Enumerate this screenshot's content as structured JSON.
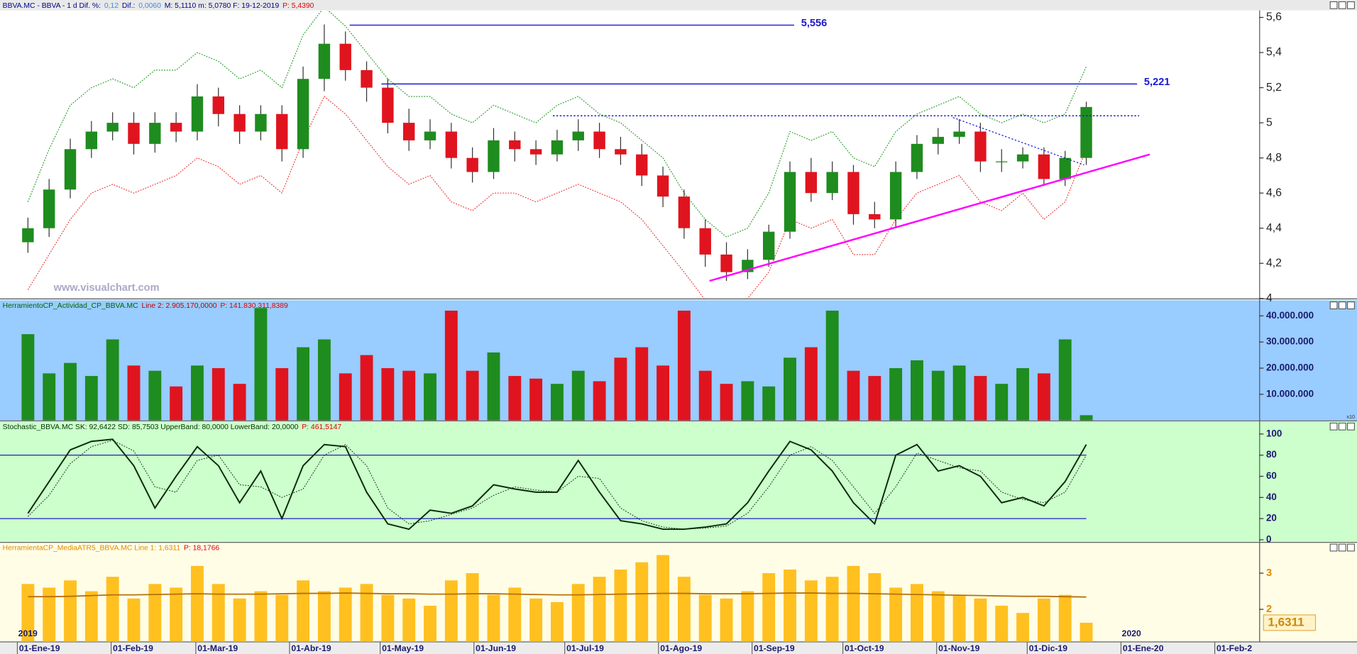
{
  "header": [
    {
      "text": "BBVA.MC - BBVA - 1 d  Dif. %:",
      "color": "#00008b"
    },
    {
      "text": "0,12",
      "color": "#3a8ee6"
    },
    {
      "text": "Dif.:",
      "color": "#00008b"
    },
    {
      "text": "0,0060",
      "color": "#3a8ee6"
    },
    {
      "text": "M: 5,1110  m: 5,0780  F: 19-12-2019",
      "color": "#00008b"
    },
    {
      "text": "P: 5,4390",
      "color": "#e00000"
    }
  ],
  "watermark": "www.visualchart.com",
  "chart_data": [
    {
      "type": "candlestick",
      "x": [
        0.5,
        1.5,
        2.5,
        3.5,
        4.5,
        5.5,
        6.5,
        7.5,
        8.5,
        9.5,
        10.5,
        11.5,
        12.5,
        13.5,
        14.5,
        15.5,
        16.5,
        17.5,
        18.5,
        19.5,
        20.5,
        21.5,
        22.5,
        23.5,
        24.5,
        25.5,
        26.5,
        27.5,
        28.5,
        29.5,
        30.5,
        31.5,
        32.5,
        33.5,
        34.5,
        35.5,
        36.5,
        37.5,
        38.5,
        39.5,
        40.5,
        41.5,
        42.5,
        43.5,
        44.5,
        45.5,
        46.5,
        47.5,
        48.5,
        49.5,
        50.5
      ],
      "open": [
        4.32,
        4.4,
        4.62,
        4.85,
        4.95,
        5.0,
        4.88,
        5.0,
        4.95,
        5.15,
        5.05,
        4.95,
        5.05,
        4.85,
        5.25,
        5.45,
        5.3,
        5.2,
        5.0,
        4.9,
        4.95,
        4.8,
        4.72,
        4.9,
        4.85,
        4.82,
        4.9,
        4.95,
        4.85,
        4.82,
        4.7,
        4.58,
        4.4,
        4.25,
        4.15,
        4.22,
        4.38,
        4.72,
        4.6,
        4.72,
        4.48,
        4.45,
        4.72,
        4.88,
        4.92,
        4.95,
        4.78,
        4.78,
        4.82,
        4.68,
        4.8
      ],
      "high": [
        4.46,
        4.68,
        4.91,
        5.01,
        5.06,
        5.06,
        5.06,
        5.06,
        5.22,
        5.2,
        5.1,
        5.1,
        5.1,
        5.32,
        5.56,
        5.52,
        5.35,
        5.25,
        5.08,
        5.02,
        5.0,
        4.86,
        4.97,
        4.95,
        4.9,
        4.96,
        5.02,
        5.0,
        4.92,
        4.88,
        4.75,
        4.62,
        4.45,
        4.32,
        4.28,
        4.42,
        4.78,
        4.8,
        4.78,
        4.76,
        4.55,
        4.78,
        4.93,
        4.97,
        5.02,
        5.0,
        4.85,
        4.86,
        4.86,
        4.84,
        5.12
      ],
      "low": [
        4.26,
        4.35,
        4.57,
        4.8,
        4.9,
        4.82,
        4.83,
        4.89,
        4.9,
        4.98,
        4.88,
        4.9,
        4.78,
        4.8,
        5.18,
        5.24,
        5.12,
        4.94,
        4.84,
        4.85,
        4.74,
        4.66,
        4.68,
        4.78,
        4.76,
        4.78,
        4.84,
        4.8,
        4.76,
        4.64,
        4.52,
        4.34,
        4.18,
        4.1,
        4.11,
        4.18,
        4.34,
        4.55,
        4.56,
        4.42,
        4.4,
        4.4,
        4.68,
        4.82,
        4.88,
        4.72,
        4.72,
        4.74,
        4.64,
        4.64,
        4.76
      ],
      "close": [
        4.4,
        4.62,
        4.85,
        4.95,
        5.0,
        4.88,
        5.0,
        4.95,
        5.15,
        5.05,
        4.95,
        5.05,
        4.85,
        5.25,
        5.45,
        5.3,
        5.2,
        5.0,
        4.9,
        4.95,
        4.8,
        4.72,
        4.9,
        4.85,
        4.82,
        4.9,
        4.95,
        4.85,
        4.82,
        4.7,
        4.58,
        4.4,
        4.25,
        4.15,
        4.22,
        4.38,
        4.72,
        4.6,
        4.72,
        4.48,
        4.45,
        4.72,
        4.88,
        4.92,
        4.95,
        4.78,
        4.78,
        4.82,
        4.68,
        4.8,
        5.09
      ],
      "up_color": "#1e8c1e",
      "down_color": "#e0141e",
      "upper_band": {
        "color": "#2f9e2f",
        "values": [
          4.55,
          4.85,
          5.1,
          5.2,
          5.25,
          5.2,
          5.3,
          5.3,
          5.4,
          5.35,
          5.25,
          5.3,
          5.2,
          5.5,
          5.66,
          5.55,
          5.4,
          5.25,
          5.15,
          5.15,
          5.05,
          5.0,
          5.1,
          5.05,
          5.0,
          5.1,
          5.15,
          5.05,
          5.0,
          4.9,
          4.8,
          4.6,
          4.45,
          4.35,
          4.4,
          4.6,
          4.95,
          4.9,
          4.95,
          4.8,
          4.75,
          4.95,
          5.05,
          5.1,
          5.15,
          5.05,
          5.0,
          5.05,
          5.0,
          5.05,
          5.32
        ]
      },
      "lower_band": {
        "color": "#f03c3c",
        "values": [
          4.05,
          4.25,
          4.45,
          4.6,
          4.65,
          4.6,
          4.65,
          4.7,
          4.8,
          4.75,
          4.65,
          4.7,
          4.6,
          4.9,
          5.15,
          5.05,
          4.9,
          4.75,
          4.65,
          4.7,
          4.55,
          4.5,
          4.6,
          4.6,
          4.55,
          4.6,
          4.65,
          4.6,
          4.55,
          4.45,
          4.3,
          4.15,
          3.99,
          3.95,
          4.0,
          4.15,
          4.45,
          4.4,
          4.45,
          4.25,
          4.25,
          4.45,
          4.6,
          4.65,
          4.7,
          4.55,
          4.5,
          4.6,
          4.45,
          4.55,
          4.85
        ]
      },
      "hlines": [
        {
          "value": 5.556,
          "label": "5,556",
          "x": [
            15.7,
            36.7
          ],
          "color": "#1a1ad0",
          "dashed": false
        },
        {
          "value": 5.221,
          "label": "5,221",
          "x": [
            17.2,
            52.9
          ],
          "color": "#1a1ad0",
          "dashed": false
        },
        {
          "value": 5.04,
          "x": [
            25.3,
            53.0
          ],
          "color": "#1a1ad0",
          "dashed": true
        }
      ],
      "trendlines": [
        {
          "x": [
            32.7,
            53.5
          ],
          "y": [
            4.1,
            4.82
          ],
          "color": "#ff00ff",
          "dashed": false
        },
        {
          "x": [
            44.2,
            50.4
          ],
          "y": [
            5.03,
            4.76
          ],
          "color": "#1a1ad0",
          "dashed": true
        }
      ],
      "xlim": [
        -0.82,
        58.67
      ],
      "ylim": [
        4.0,
        5.64
      ],
      "yticks": [
        4,
        {
          "value": 4.2,
          "label": "4,2"
        },
        {
          "value": 4.4,
          "label": "4,4"
        },
        {
          "value": 4.6,
          "label": "4,6"
        },
        {
          "value": 4.8,
          "label": "4,8"
        },
        5,
        {
          "value": 5.2,
          "label": "5,2"
        },
        {
          "value": 5.4,
          "label": "5,4"
        },
        {
          "value": 5.6,
          "label": "5,6"
        }
      ]
    },
    {
      "type": "bar",
      "title_parts": [
        {
          "text": "HerramientoCP_Actividad_CP_BBVA.MC",
          "color": "#006400"
        },
        {
          "text": "Line 2: 2.905.170,0000",
          "color": "#c00000"
        },
        {
          "text": "P: 141.830.311,8389",
          "color": "#e00000"
        }
      ],
      "background": "#99ccff",
      "x": [
        0.5,
        1.5,
        2.5,
        3.5,
        4.5,
        5.5,
        6.5,
        7.5,
        8.5,
        9.5,
        10.5,
        11.5,
        12.5,
        13.5,
        14.5,
        15.5,
        16.5,
        17.5,
        18.5,
        19.5,
        20.5,
        21.5,
        22.5,
        23.5,
        24.5,
        25.5,
        26.5,
        27.5,
        28.5,
        29.5,
        30.5,
        31.5,
        32.5,
        33.5,
        34.5,
        35.5,
        36.5,
        37.5,
        38.5,
        39.5,
        40.5,
        41.5,
        42.5,
        43.5,
        44.5,
        45.5,
        46.5,
        47.5,
        48.5,
        49.5,
        50.5
      ],
      "values": [
        33000000,
        18000000,
        22000000,
        17000000,
        31000000,
        21000000,
        19000000,
        13000000,
        21000000,
        20000000,
        14000000,
        43000000,
        20000000,
        28000000,
        31000000,
        18000000,
        25000000,
        20000000,
        19000000,
        18000000,
        42000000,
        19000000,
        26000000,
        17000000,
        16000000,
        14000000,
        19000000,
        15000000,
        24000000,
        28000000,
        21000000,
        42000000,
        19000000,
        14000000,
        15000000,
        13000000,
        24000000,
        28000000,
        42000000,
        19000000,
        17000000,
        20000000,
        23000000,
        19000000,
        21000000,
        17000000,
        14000000,
        20000000,
        18000000,
        31000000,
        2000000
      ],
      "scale_note": "x10",
      "xlim": [
        -0.82,
        58.67
      ],
      "ylim": [
        0,
        46000000
      ],
      "yticks": [
        {
          "value": 10000000,
          "label": "10.000.000"
        },
        {
          "value": 20000000,
          "label": "20.000.000"
        },
        {
          "value": 30000000,
          "label": "30.000.000"
        },
        {
          "value": 40000000,
          "label": "40.000.000"
        }
      ]
    },
    {
      "type": "line",
      "title_parts": [
        {
          "text": "Stochastic_BBVA.MC  SK: 92,6422  SD: 85,7503  UpperBand: 80,0000  LowerBand: 20,0000",
          "color": "#003300"
        },
        {
          "text": "P: 461,5147",
          "color": "#e00000"
        }
      ],
      "background": "#ccffcc",
      "x": [
        0.5,
        1.5,
        2.5,
        3.5,
        4.5,
        5.5,
        6.5,
        7.5,
        8.5,
        9.5,
        10.5,
        11.5,
        12.5,
        13.5,
        14.5,
        15.5,
        16.5,
        17.5,
        18.5,
        19.5,
        20.5,
        21.5,
        22.5,
        23.5,
        24.5,
        25.5,
        26.5,
        27.5,
        28.5,
        29.5,
        30.5,
        31.5,
        32.5,
        33.5,
        34.5,
        35.5,
        36.5,
        37.5,
        38.5,
        39.5,
        40.5,
        41.5,
        42.5,
        43.5,
        44.5,
        45.5,
        46.5,
        47.5,
        48.5,
        49.5,
        50.5
      ],
      "sk": {
        "color": "#0a2a0a",
        "values": [
          25,
          55,
          85,
          93,
          95,
          70,
          30,
          60,
          88,
          70,
          35,
          65,
          20,
          70,
          90,
          88,
          45,
          15,
          10,
          28,
          25,
          32,
          52,
          48,
          45,
          45,
          75,
          45,
          18,
          15,
          10,
          10,
          12,
          15,
          35,
          65,
          93,
          85,
          65,
          35,
          15,
          80,
          90,
          65,
          70,
          60,
          35,
          40,
          32,
          55,
          90
        ]
      },
      "sd": {
        "color": "#0a2a0a",
        "values": [
          22,
          42,
          72,
          88,
          94,
          84,
          50,
          45,
          75,
          80,
          52,
          50,
          40,
          48,
          80,
          90,
          70,
          30,
          15,
          18,
          24,
          30,
          42,
          50,
          47,
          45,
          60,
          58,
          30,
          18,
          12,
          10,
          11,
          13,
          25,
          50,
          80,
          88,
          75,
          50,
          25,
          50,
          82,
          75,
          68,
          65,
          45,
          38,
          35,
          45,
          80
        ]
      },
      "bands": [
        80,
        20
      ],
      "band_color": "#2020c0",
      "xlim": [
        -0.82,
        58.67
      ],
      "ylim": [
        -2.5,
        112
      ],
      "yticks": [
        0,
        20,
        40,
        60,
        80,
        100
      ]
    },
    {
      "type": "bar",
      "title_parts": [
        {
          "text": "HerramientaCP_MediaATR5_BBVA.MC  Line 1: 1,6311",
          "color": "#e08a00"
        },
        {
          "text": "P: 18,1766",
          "color": "#e00000"
        }
      ],
      "background": "#fffde6",
      "color": "#ffc020",
      "x": [
        0.5,
        1.5,
        2.5,
        3.5,
        4.5,
        5.5,
        6.5,
        7.5,
        8.5,
        9.5,
        10.5,
        11.5,
        12.5,
        13.5,
        14.5,
        15.5,
        16.5,
        17.5,
        18.5,
        19.5,
        20.5,
        21.5,
        22.5,
        23.5,
        24.5,
        25.5,
        26.5,
        27.5,
        28.5,
        29.5,
        30.5,
        31.5,
        32.5,
        33.5,
        34.5,
        35.5,
        36.5,
        37.5,
        38.5,
        39.5,
        40.5,
        41.5,
        42.5,
        43.5,
        44.5,
        45.5,
        46.5,
        47.5,
        48.5,
        49.5,
        50.5
      ],
      "values": [
        2.7,
        2.6,
        2.8,
        2.5,
        2.9,
        2.3,
        2.7,
        2.6,
        3.2,
        2.7,
        2.3,
        2.5,
        2.4,
        2.8,
        2.5,
        2.6,
        2.7,
        2.4,
        2.3,
        2.1,
        2.8,
        3.0,
        2.4,
        2.6,
        2.3,
        2.2,
        2.7,
        2.9,
        3.1,
        3.3,
        3.5,
        2.9,
        2.4,
        2.3,
        2.5,
        3.0,
        3.1,
        2.8,
        2.9,
        3.2,
        3.0,
        2.6,
        2.7,
        2.5,
        2.4,
        2.3,
        2.1,
        1.9,
        2.3,
        2.4,
        1.63
      ],
      "line": {
        "color": "#b8700a",
        "values": [
          2.35,
          2.35,
          2.36,
          2.38,
          2.4,
          2.4,
          2.41,
          2.42,
          2.43,
          2.42,
          2.42,
          2.42,
          2.43,
          2.44,
          2.44,
          2.45,
          2.44,
          2.43,
          2.43,
          2.42,
          2.42,
          2.43,
          2.43,
          2.42,
          2.41,
          2.4,
          2.4,
          2.41,
          2.42,
          2.43,
          2.44,
          2.44,
          2.43,
          2.43,
          2.43,
          2.44,
          2.45,
          2.45,
          2.44,
          2.44,
          2.43,
          2.42,
          2.41,
          2.4,
          2.39,
          2.38,
          2.37,
          2.36,
          2.36,
          2.35,
          2.34
        ]
      },
      "last_value": {
        "value": 1.6311,
        "label": "1,6311"
      },
      "xlim": [
        -0.82,
        58.67
      ],
      "ylim": [
        1.1,
        3.85
      ],
      "yticks": [
        2,
        3
      ],
      "year_labels": [
        {
          "value": 0,
          "label": "2019"
        },
        {
          "value": 52.14,
          "label": "2020"
        }
      ],
      "xticks": [
        {
          "value": 0,
          "label": "01-Ene-19"
        },
        {
          "value": 4.43,
          "label": "01-Feb-19"
        },
        {
          "value": 8.43,
          "label": "01-Mar-19"
        },
        {
          "value": 12.86,
          "label": "01-Abr-19"
        },
        {
          "value": 17.14,
          "label": "01-May-19"
        },
        {
          "value": 21.57,
          "label": "01-Jun-19"
        },
        {
          "value": 25.86,
          "label": "01-Jul-19"
        },
        {
          "value": 30.29,
          "label": "01-Ago-19"
        },
        {
          "value": 34.71,
          "label": "01-Sep-19"
        },
        {
          "value": 39.0,
          "label": "01-Oct-19"
        },
        {
          "value": 43.43,
          "label": "01-Nov-19"
        },
        {
          "value": 47.71,
          "label": "01-Dic-19"
        },
        {
          "value": 52.14,
          "label": "01-Ene-20"
        },
        {
          "value": 56.57,
          "label": "01-Feb-2"
        }
      ]
    }
  ]
}
